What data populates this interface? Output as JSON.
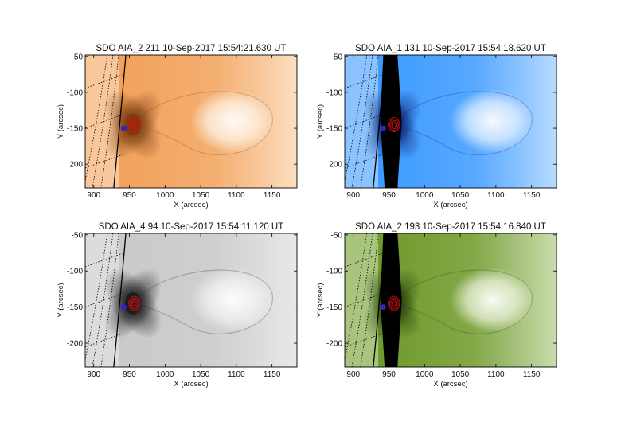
{
  "figure": {
    "panels": [
      {
        "id": "aia211",
        "title": "SDO AIA_2 211 10-Sep-2017 15:54:21.630 UT",
        "colormap": "orange",
        "background": "#f2a25c",
        "dark": "#7a3a10",
        "light": "#fff5e8",
        "xlabel": "X (arcsec)",
        "ylabel": "Y (arcsec)",
        "xticks": [
          "900",
          "950",
          "1000",
          "1050",
          "1100",
          "1150"
        ],
        "yticks": [
          "-50",
          "-100",
          "-150",
          "200"
        ],
        "saturated_core": false
      },
      {
        "id": "aia131",
        "title": "SDO AIA_1 131 10-Sep-2017 15:54:18.620 UT",
        "colormap": "blue",
        "background": "#3d9bff",
        "dark": "#0a1a6a",
        "light": "#e8f3ff",
        "xlabel": "X (arcsec)",
        "ylabel": "Y (arcsec)",
        "xticks": [
          "900",
          "950",
          "1000",
          "1050",
          "1100",
          "1150"
        ],
        "yticks": [
          "-50",
          "-100",
          "-150",
          "200"
        ],
        "saturated_core": true
      },
      {
        "id": "aia94",
        "title": "SDO AIA_4 94 10-Sep-2017 15:54:11.120 UT",
        "colormap": "gray",
        "background": "#c9c9c9",
        "dark": "#1a1a1a",
        "light": "#f4f4f4",
        "xlabel": "X (arcsec)",
        "ylabel": "Y (arcsec)",
        "xticks": [
          "900",
          "950",
          "1000",
          "1050",
          "1100",
          "1150"
        ],
        "yticks": [
          "-50",
          "-100",
          "-150",
          "-200"
        ],
        "saturated_core": false
      },
      {
        "id": "aia193",
        "title": "SDO AIA_2 193 10-Sep-2017 15:54:16.840 UT",
        "colormap": "green",
        "background": "#6f9a2c",
        "dark": "#223a08",
        "light": "#eef5e0",
        "xlabel": "X (arcsec)",
        "ylabel": "Y (arcsec)",
        "xticks": [
          "900",
          "950",
          "1000",
          "1050",
          "1100",
          "1150"
        ],
        "yticks": [
          "-50",
          "-100",
          "-150",
          "-200"
        ],
        "saturated_core": true
      }
    ],
    "colors": {
      "contour": "#cc1111",
      "marker": "#3322cc",
      "limb": "#000000"
    }
  }
}
